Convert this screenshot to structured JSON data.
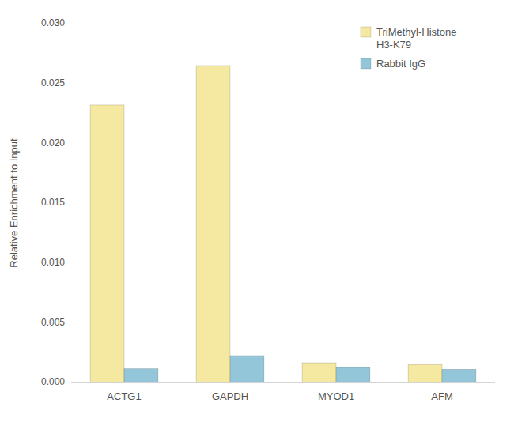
{
  "chart_data": {
    "type": "bar",
    "categories": [
      "ACTG1",
      "GAPDH",
      "MYOD1",
      "AFM"
    ],
    "series": [
      {
        "name": "TriMethyl-Histone\nH3-K79",
        "color": "#F5E8A0",
        "values": [
          0.0232,
          0.0265,
          0.00165,
          0.0015
        ]
      },
      {
        "name": "Rabbit IgG",
        "color": "#93C6D8",
        "values": [
          0.00115,
          0.00225,
          0.00125,
          0.0011
        ]
      }
    ],
    "y_label": "Relative Enrichment to Input",
    "ylim": [
      0.0,
      0.03
    ],
    "yticks": [
      {
        "value": 0.0,
        "label": "0.000"
      },
      {
        "value": 0.005,
        "label": "0.005"
      },
      {
        "value": 0.01,
        "label": "0.010"
      },
      {
        "value": 0.015,
        "label": "0.015"
      },
      {
        "value": 0.02,
        "label": "0.020"
      },
      {
        "value": 0.025,
        "label": "0.025"
      },
      {
        "value": 0.03,
        "label": "0.030"
      }
    ],
    "grid": false,
    "legend": "upper right"
  }
}
